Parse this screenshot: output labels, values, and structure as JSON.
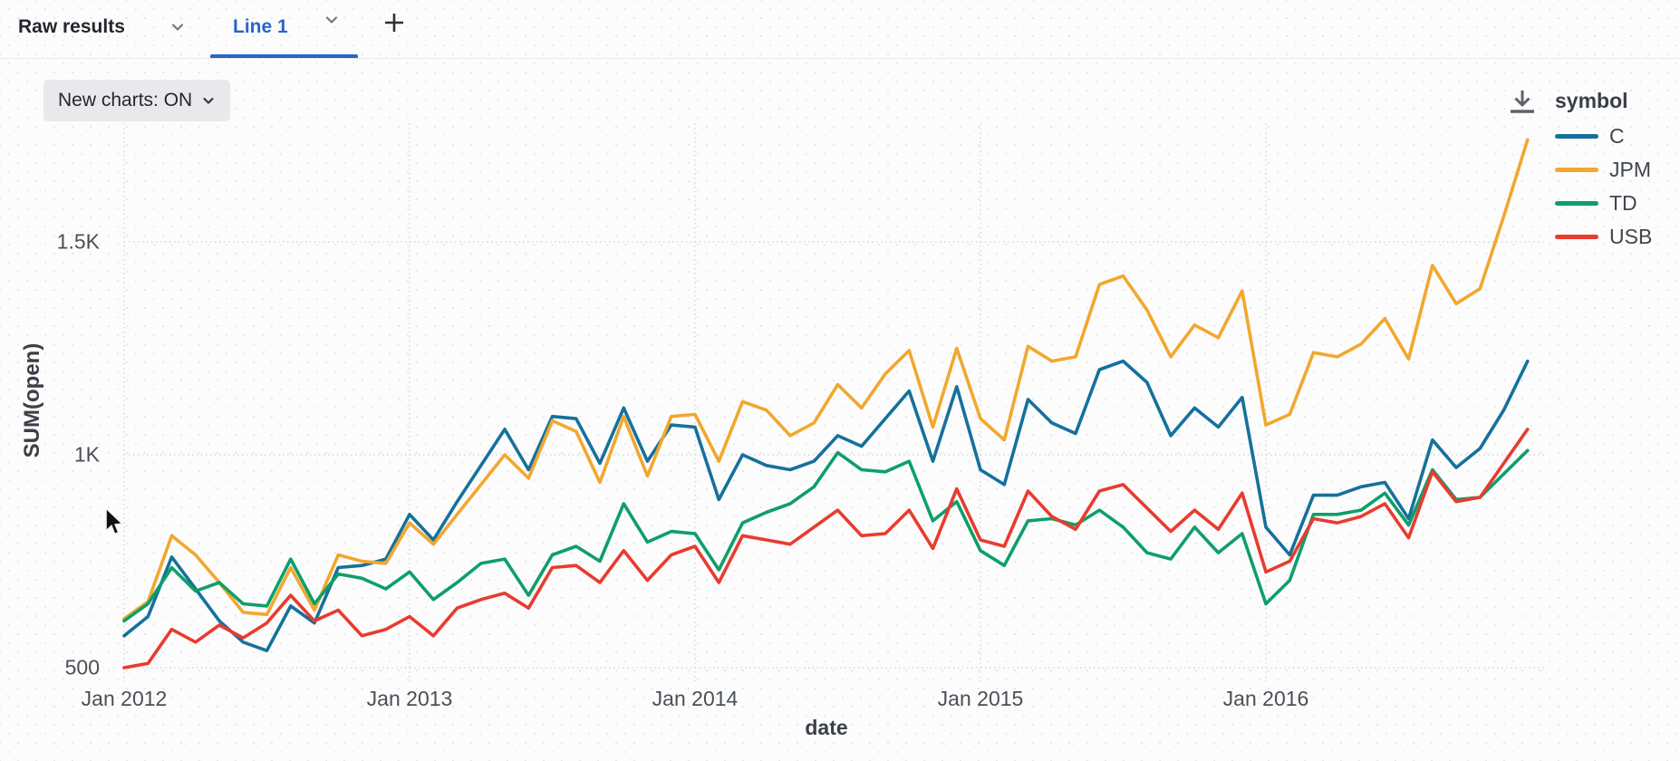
{
  "topbar": {
    "tabs": [
      {
        "label": "Raw results",
        "active": false
      },
      {
        "label": "Line 1",
        "active": true
      }
    ],
    "add_tab_label": "+"
  },
  "toolbar": {
    "new_charts_label": "New charts: ON"
  },
  "colors": {
    "active_tab": "#2a64c5",
    "icon_gray": "#5f6368",
    "grid": "#d4d6e0"
  },
  "chart_data": {
    "type": "line",
    "title": "",
    "xlabel": "date",
    "ylabel": "SUM(open)",
    "legend_title": "symbol",
    "legend_position": "right",
    "grid": true,
    "x_range": {
      "start": "Jan 2012",
      "end": "Dec 2016",
      "interval": "month",
      "count": 60
    },
    "x_tick_labels": [
      "Jan 2012",
      "Jan 2013",
      "Jan 2014",
      "Jan 2015",
      "Jan 2016"
    ],
    "x_tick_month_index": [
      0,
      12,
      24,
      36,
      48
    ],
    "y_ticks": [
      500,
      1000,
      1500
    ],
    "y_tick_labels": [
      "500",
      "1K",
      "1.5K"
    ],
    "ylim": [
      480,
      1790
    ],
    "series": [
      {
        "name": "C",
        "color": "#15719B",
        "values": [
          575,
          620,
          760,
          685,
          610,
          560,
          540,
          645,
          605,
          735,
          740,
          755,
          860,
          800,
          890,
          975,
          1060,
          965,
          1090,
          1085,
          980,
          1110,
          985,
          1070,
          1065,
          895,
          1000,
          975,
          965,
          985,
          1045,
          1020,
          1085,
          1150,
          985,
          1160,
          965,
          930,
          1130,
          1075,
          1050,
          1200,
          1220,
          1170,
          1045,
          1110,
          1065,
          1135,
          830,
          765,
          905,
          905,
          925,
          935,
          850,
          1035,
          970,
          1015,
          1105,
          1220
        ]
      },
      {
        "name": "JPM",
        "color": "#F2A72E",
        "values": [
          615,
          655,
          810,
          765,
          700,
          630,
          625,
          735,
          635,
          765,
          750,
          745,
          840,
          790,
          860,
          930,
          1000,
          945,
          1080,
          1055,
          935,
          1090,
          950,
          1090,
          1095,
          985,
          1125,
          1105,
          1045,
          1075,
          1165,
          1110,
          1190,
          1245,
          1065,
          1250,
          1085,
          1035,
          1255,
          1220,
          1230,
          1400,
          1420,
          1340,
          1230,
          1305,
          1275,
          1385,
          1070,
          1095,
          1240,
          1230,
          1260,
          1320,
          1225,
          1445,
          1355,
          1390,
          1560,
          1740
        ]
      },
      {
        "name": "TD",
        "color": "#0E9F6A",
        "values": [
          610,
          650,
          735,
          680,
          700,
          650,
          645,
          755,
          650,
          720,
          710,
          685,
          725,
          660,
          700,
          745,
          755,
          670,
          765,
          785,
          750,
          885,
          795,
          820,
          815,
          730,
          840,
          865,
          885,
          925,
          1005,
          965,
          960,
          985,
          845,
          890,
          775,
          740,
          845,
          850,
          835,
          870,
          830,
          770,
          755,
          830,
          770,
          815,
          650,
          705,
          860,
          860,
          870,
          910,
          835,
          965,
          895,
          900,
          955,
          1010
        ]
      },
      {
        "name": "USB",
        "color": "#E93B2E",
        "values": [
          500,
          510,
          590,
          560,
          600,
          570,
          605,
          670,
          610,
          635,
          575,
          590,
          620,
          575,
          640,
          660,
          675,
          640,
          735,
          740,
          700,
          775,
          705,
          765,
          785,
          700,
          810,
          800,
          790,
          830,
          870,
          810,
          815,
          870,
          780,
          920,
          800,
          785,
          915,
          855,
          825,
          915,
          930,
          875,
          820,
          870,
          825,
          910,
          725,
          750,
          850,
          840,
          855,
          885,
          805,
          960,
          890,
          900,
          980,
          1060
        ]
      }
    ]
  }
}
